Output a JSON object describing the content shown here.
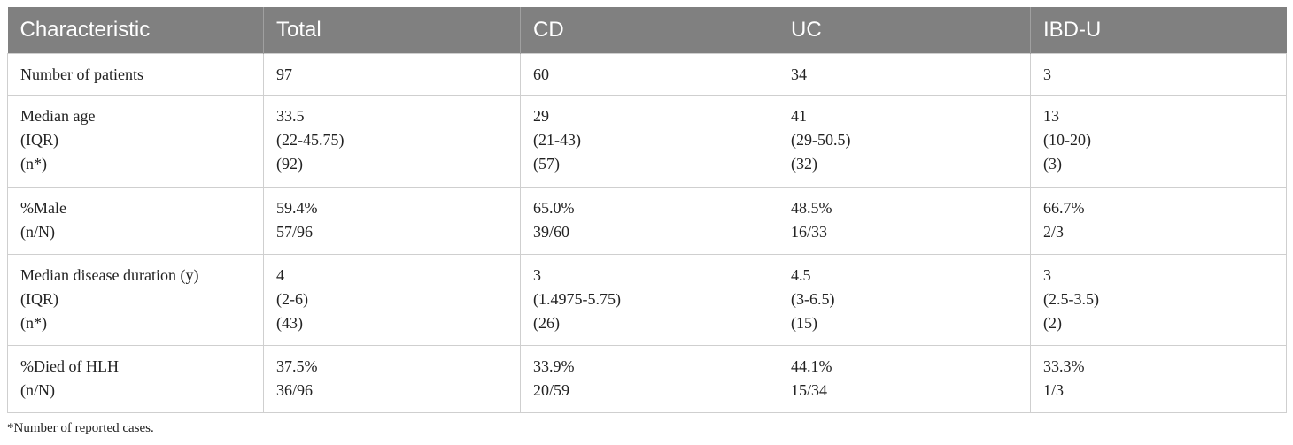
{
  "table": {
    "header": [
      "Characteristic",
      "Total",
      "CD",
      "UC",
      "IBD-U"
    ],
    "rows": [
      [
        [
          "Number of patients"
        ],
        [
          "97"
        ],
        [
          "60"
        ],
        [
          "34"
        ],
        [
          "3"
        ]
      ],
      [
        [
          "Median age",
          "(IQR)",
          "(n*)"
        ],
        [
          "33.5",
          "(22-45.75)",
          "(92)"
        ],
        [
          "29",
          "(21-43)",
          "(57)"
        ],
        [
          "41",
          "(29-50.5)",
          "(32)"
        ],
        [
          "13",
          "(10-20)",
          "(3)"
        ]
      ],
      [
        [
          "%Male",
          "(n/N)"
        ],
        [
          "59.4%",
          "57/96"
        ],
        [
          "65.0%",
          "39/60"
        ],
        [
          "48.5%",
          "16/33"
        ],
        [
          "66.7%",
          "2/3"
        ]
      ],
      [
        [
          "Median disease duration (y)",
          "(IQR)",
          "(n*)"
        ],
        [
          "4",
          "(2-6)",
          "(43)"
        ],
        [
          "3",
          "(1.4975-5.75)",
          "(26)"
        ],
        [
          "4.5",
          "(3-6.5)",
          "(15)"
        ],
        [
          "3",
          "(2.5-3.5)",
          "(2)"
        ]
      ],
      [
        [
          "%Died of HLH",
          "(n/N)"
        ],
        [
          "37.5%",
          "36/96"
        ],
        [
          "33.9%",
          "20/59"
        ],
        [
          "44.1%",
          "15/34"
        ],
        [
          "33.3%",
          "1/3"
        ]
      ]
    ]
  },
  "footnote": "*Number of reported cases."
}
